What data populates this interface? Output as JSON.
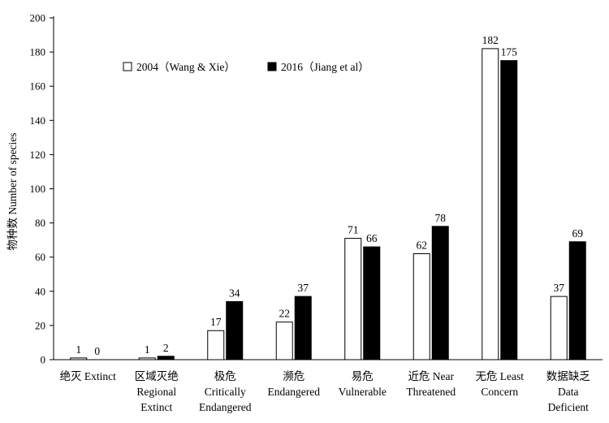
{
  "chart_data": {
    "type": "bar",
    "ylabel": "物种数 Number of species",
    "ylim": [
      0,
      200
    ],
    "yticks": [
      0,
      20,
      40,
      60,
      80,
      100,
      120,
      140,
      160,
      180,
      200
    ],
    "grid": false,
    "legend_position": "top-left",
    "categories": [
      [
        "绝灭 Extinct"
      ],
      [
        "区域灭绝",
        "Regional",
        "Extinct"
      ],
      [
        "极危",
        "Critically",
        "Endangered"
      ],
      [
        "濒危",
        "Endangered"
      ],
      [
        "易危",
        "Vulnerable"
      ],
      [
        "近危 Near",
        "Threatened"
      ],
      [
        "无危 Least",
        "Concern"
      ],
      [
        "数据缺乏",
        "Data",
        "Deficient"
      ]
    ],
    "series": [
      {
        "name": "2004（Wang & Xie）",
        "color": "#ffffff",
        "values": [
          1,
          1,
          17,
          22,
          71,
          62,
          182,
          37
        ]
      },
      {
        "name": "2016（Jiang et al）",
        "color": "#000000",
        "values": [
          0,
          2,
          34,
          37,
          66,
          78,
          175,
          69
        ]
      }
    ]
  }
}
